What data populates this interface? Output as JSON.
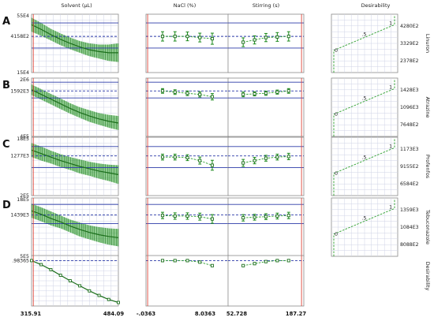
{
  "chart_data": {
    "type": "line",
    "title": "",
    "factors": [
      {
        "name": "Solvent (µL)",
        "min": "315.91",
        "max": "484.09"
      },
      {
        "name": "NaCl (%)",
        "min": "-.0363",
        "max": "8.0363"
      },
      {
        "name": "Stirring (s)",
        "min": "52.728",
        "max": "187.27"
      }
    ],
    "desirability_header": "Desirability",
    "rows": [
      {
        "letter": "A",
        "response": "Linuron",
        "y_top": "55E4",
        "y_bottom": "15E4",
        "y_current": "4158E2",
        "des_ticks": [
          "4280E2",
          "3329E2",
          "2378E2"
        ],
        "des_points": [
          "0",
          ".5",
          "1"
        ],
        "solvent_curve": [
          0.82,
          0.74,
          0.65,
          0.57,
          0.5,
          0.44,
          0.39,
          0.36,
          0.34,
          0.34
        ],
        "solvent_band": [
          0.12,
          0.11,
          0.1,
          0.1,
          0.1,
          0.1,
          0.11,
          0.12,
          0.14,
          0.16
        ],
        "nacl_points": [
          0.62,
          0.62,
          0.62,
          0.6,
          0.58
        ],
        "nacl_err": [
          0.16,
          0.16,
          0.15,
          0.15,
          0.19
        ],
        "stirring_points": [
          0.52,
          0.56,
          0.6,
          0.61,
          0.62
        ],
        "stirring_err": [
          0.15,
          0.14,
          0.14,
          0.15,
          0.16
        ],
        "ref_upper": 0.85,
        "ref_dash": 0.62,
        "ref_lower": 0.42
      },
      {
        "letter": "B",
        "response": "Atrazine",
        "y_top": "2E6",
        "y_bottom": "4E5",
        "y_current": "1592E3",
        "des_ticks": [
          "1428E3",
          "1096E3",
          "7648E2"
        ],
        "des_points": [
          "0",
          ".5",
          "1"
        ],
        "solvent_curve": [
          0.8,
          0.72,
          0.64,
          0.56,
          0.48,
          0.41,
          0.35,
          0.3,
          0.26,
          0.23
        ],
        "solvent_band": [
          0.09,
          0.09,
          0.09,
          0.09,
          0.09,
          0.09,
          0.1,
          0.1,
          0.11,
          0.12
        ],
        "nacl_points": [
          0.78,
          0.76,
          0.74,
          0.72,
          0.68
        ],
        "nacl_err": [
          0.08,
          0.08,
          0.08,
          0.09,
          0.11
        ],
        "stirring_points": [
          0.72,
          0.73,
          0.74,
          0.76,
          0.78
        ],
        "stirring_err": [
          0.08,
          0.07,
          0.07,
          0.07,
          0.08
        ],
        "ref_upper": 0.93,
        "ref_dash": 0.78,
        "ref_lower": 0.66
      },
      {
        "letter": "C",
        "response": "Profenfos",
        "y_top": "18E5",
        "y_bottom": "2E5",
        "y_current": "1277E3",
        "des_ticks": [
          "1173E3",
          "9155E2",
          "6584E2"
        ],
        "des_points": [
          "0",
          ".5",
          "1"
        ],
        "solvent_curve": [
          0.78,
          0.72,
          0.66,
          0.6,
          0.55,
          0.5,
          0.46,
          0.42,
          0.39,
          0.36
        ],
        "solvent_band": [
          0.12,
          0.12,
          0.11,
          0.11,
          0.11,
          0.12,
          0.12,
          0.13,
          0.14,
          0.16
        ],
        "nacl_points": [
          0.66,
          0.66,
          0.65,
          0.6,
          0.52
        ],
        "nacl_err": [
          0.1,
          0.1,
          0.1,
          0.12,
          0.17
        ],
        "stirring_points": [
          0.56,
          0.6,
          0.64,
          0.66,
          0.67
        ],
        "stirring_err": [
          0.12,
          0.11,
          0.1,
          0.1,
          0.11
        ],
        "ref_upper": 0.84,
        "ref_dash": 0.68,
        "ref_lower": 0.48
      },
      {
        "letter": "D",
        "response": "Tebuconazole",
        "y_top": "18E5",
        "y_bottom": "5E5",
        "y_current": "1439E3",
        "des_ticks": [
          "1359E3",
          "1084E3",
          "8088E2"
        ],
        "des_points": [
          "0",
          ".5",
          "1"
        ],
        "solvent_curve": [
          0.78,
          0.72,
          0.65,
          0.59,
          0.52,
          0.46,
          0.41,
          0.37,
          0.34,
          0.32
        ],
        "solvent_band": [
          0.12,
          0.12,
          0.12,
          0.11,
          0.11,
          0.12,
          0.12,
          0.13,
          0.14,
          0.15
        ],
        "nacl_points": [
          0.7,
          0.69,
          0.69,
          0.68,
          0.64
        ],
        "nacl_err": [
          0.11,
          0.11,
          0.11,
          0.12,
          0.15
        ],
        "stirring_points": [
          0.66,
          0.67,
          0.68,
          0.69,
          0.7
        ],
        "stirring_err": [
          0.11,
          0.1,
          0.1,
          0.1,
          0.11
        ],
        "ref_upper": 0.89,
        "ref_dash": 0.71,
        "ref_lower": 0.56
      }
    ],
    "overall": {
      "response": "Desirability",
      "y_current": ".98365",
      "solvent_curve": [
        0.9,
        0.82,
        0.72,
        0.61,
        0.5,
        0.4,
        0.3,
        0.21,
        0.13,
        0.07
      ],
      "nacl_points": [
        0.9,
        0.9,
        0.9,
        0.87,
        0.8
      ],
      "stirring_points": [
        0.8,
        0.84,
        0.88,
        0.9,
        0.9
      ],
      "ref_dash": 0.9
    },
    "current_setting_fraction": [
      0.02,
      0.02,
      0.97
    ]
  }
}
